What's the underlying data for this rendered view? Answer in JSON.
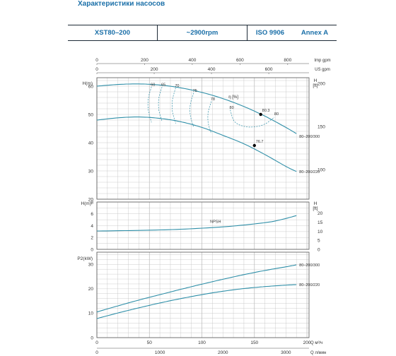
{
  "page": {
    "title": "Характеристики насосов",
    "spec": {
      "model": "XST80–200",
      "speed": "~2900rpm",
      "standard": "ISO 9906",
      "grade": "Annex A"
    }
  },
  "colors": {
    "curve": "#2f8fa8",
    "grid": "#b9b9b9",
    "frame": "#555555",
    "text": "#333333",
    "title": "#1a6fa8"
  },
  "chart_data": [
    {
      "panel": "head",
      "type": "line",
      "ylabel": "H(m)",
      "ylabel_right": "H [ft]",
      "ylim": [
        20,
        63
      ],
      "yticks": [
        20,
        30,
        40,
        50,
        60
      ],
      "yticks_right": [
        100,
        150,
        200
      ],
      "top_axes": [
        {
          "label": "Imp gpm",
          "ticks": [
            0,
            200,
            400,
            600,
            800
          ]
        },
        {
          "label": "US gpm",
          "ticks": [
            0,
            200,
            400,
            600,
            800,
            1000
          ]
        }
      ],
      "x_range_m3h": [
        0,
        202
      ],
      "series": [
        {
          "name": "80–200/300",
          "x": [
            0,
            20,
            40,
            60,
            80,
            100,
            120,
            140,
            160,
            180,
            190
          ],
          "y": [
            60,
            60.6,
            60.8,
            60.4,
            59.4,
            57.8,
            55.6,
            52.8,
            49.4,
            45.4,
            43.2
          ]
        },
        {
          "name": "80–200/220",
          "x": [
            0,
            20,
            40,
            60,
            80,
            100,
            120,
            140,
            160,
            180,
            190
          ],
          "y": [
            48,
            48.8,
            49.1,
            48.6,
            47.4,
            45.4,
            42.6,
            39.6,
            35.8,
            31.6,
            29.8
          ]
        }
      ],
      "efficiency": {
        "label": "η [%]",
        "contours": [
          {
            "value": "60",
            "x": 52,
            "y_top": 59.8,
            "y_bot": 47.2
          },
          {
            "value": "65",
            "x": 62,
            "y_top": 59.7,
            "y_bot": 47.6
          },
          {
            "value": "70",
            "x": 75,
            "y_top": 59.4,
            "y_bot": 46.8
          },
          {
            "value": "75",
            "x": 92,
            "y_top": 57.6,
            "y_bot": 45.6
          },
          {
            "value": "78",
            "x": 109,
            "y_top": 54.6,
            "y_bot": 43.2
          },
          {
            "value": "80",
            "x": 127,
            "y_top": 51.6,
            "y_bot": 47.2
          }
        ],
        "points": [
          {
            "label": "80.3",
            "x": 156,
            "y": 50.0
          },
          {
            "label": "76.7",
            "x": 150,
            "y": 39.0
          }
        ]
      }
    },
    {
      "panel": "npsh",
      "type": "line",
      "ylabel": "H(m)",
      "ylabel_right": "H [ft]",
      "ylim": [
        0,
        8
      ],
      "yticks": [
        0,
        2,
        4,
        6,
        8
      ],
      "yticks_right": [
        0,
        5,
        10,
        15,
        20
      ],
      "series": [
        {
          "name": "NPSH",
          "x": [
            0,
            40,
            80,
            120,
            150,
            170,
            190
          ],
          "y": [
            3.1,
            3.2,
            3.4,
            3.8,
            4.3,
            4.8,
            5.7
          ]
        }
      ]
    },
    {
      "panel": "power",
      "type": "line",
      "ylabel": "P2(kW)",
      "ylim": [
        0,
        35
      ],
      "yticks": [
        0,
        10,
        20,
        30
      ],
      "xticks_m3h": [
        0,
        50,
        100,
        150,
        200
      ],
      "xticks_lmin": [
        0,
        1000,
        2000,
        3000
      ],
      "xlabel_m3h": "Q  м³/ч",
      "xlabel_lmin": "Q  л/мин",
      "series": [
        {
          "name": "80–200/300",
          "x": [
            0,
            20,
            40,
            60,
            80,
            100,
            120,
            140,
            160,
            180,
            190
          ],
          "y": [
            10.5,
            13.0,
            15.4,
            17.6,
            19.8,
            21.9,
            23.9,
            25.8,
            27.5,
            29.0,
            29.8
          ]
        },
        {
          "name": "80–200/220",
          "x": [
            0,
            20,
            40,
            60,
            80,
            100,
            120,
            140,
            160,
            180,
            190
          ],
          "y": [
            7.8,
            10.1,
            12.2,
            14.2,
            16.0,
            17.6,
            19.0,
            20.1,
            20.9,
            21.5,
            21.7
          ]
        }
      ]
    }
  ]
}
